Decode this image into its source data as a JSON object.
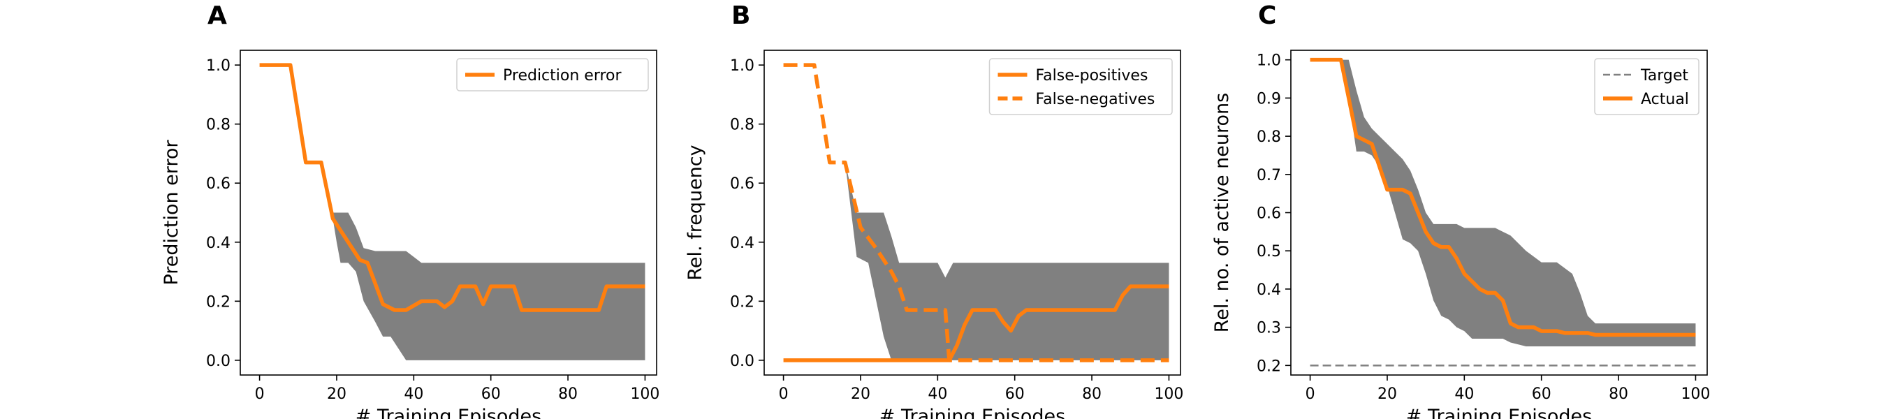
{
  "colors": {
    "orange": "#ff7f0e",
    "band": "#808080",
    "target": "#808080"
  },
  "chart_data": [
    {
      "panel": "A",
      "type": "line",
      "xlabel": "# Training Episodes",
      "ylabel": "Prediction error",
      "xlim": [
        -5,
        103
      ],
      "ylim": [
        -0.05,
        1.05
      ],
      "xticks": [
        0,
        20,
        40,
        60,
        80,
        100
      ],
      "yticks": [
        0.0,
        0.2,
        0.4,
        0.6,
        0.8,
        1.0
      ],
      "ytick_labels": [
        "0.0",
        "0.2",
        "0.4",
        "0.6",
        "0.8",
        "1.0"
      ],
      "legend_position": "upper right",
      "band": {
        "x": [
          16,
          19,
          20,
          21,
          23,
          25,
          27,
          30,
          32,
          34,
          38,
          40,
          42,
          100
        ],
        "upper": [
          0.67,
          0.5,
          0.5,
          0.5,
          0.5,
          0.45,
          0.38,
          0.37,
          0.37,
          0.37,
          0.37,
          0.35,
          0.33,
          0.33
        ],
        "lower": [
          0.67,
          0.48,
          0.4,
          0.33,
          0.33,
          0.3,
          0.2,
          0.13,
          0.08,
          0.08,
          0.0,
          0.0,
          0.0,
          0.0
        ]
      },
      "series": [
        {
          "name": "Prediction error",
          "style": "solid",
          "x": [
            0,
            8,
            12,
            16,
            19,
            22,
            26,
            28,
            32,
            35,
            38,
            42,
            44,
            46,
            48,
            50,
            52,
            54,
            56,
            58,
            60,
            62,
            64,
            66,
            68,
            70,
            72,
            80,
            86,
            88,
            90,
            100
          ],
          "y": [
            1.0,
            1.0,
            0.67,
            0.67,
            0.48,
            0.42,
            0.34,
            0.33,
            0.19,
            0.17,
            0.17,
            0.2,
            0.2,
            0.2,
            0.18,
            0.2,
            0.25,
            0.25,
            0.25,
            0.19,
            0.25,
            0.25,
            0.25,
            0.25,
            0.17,
            0.17,
            0.17,
            0.17,
            0.17,
            0.17,
            0.25,
            0.25
          ]
        }
      ]
    },
    {
      "panel": "B",
      "type": "line",
      "xlabel": "# Training Episodes",
      "ylabel": "Rel. frequency",
      "xlim": [
        -5,
        103
      ],
      "ylim": [
        -0.05,
        1.05
      ],
      "xticks": [
        0,
        20,
        40,
        60,
        80,
        100
      ],
      "yticks": [
        0.0,
        0.2,
        0.4,
        0.6,
        0.8,
        1.0
      ],
      "ytick_labels": [
        "0.0",
        "0.2",
        "0.4",
        "0.6",
        "0.8",
        "1.0"
      ],
      "legend_position": "upper right",
      "band": {
        "x": [
          16,
          19,
          22,
          26,
          28,
          30,
          32,
          36,
          40,
          42,
          44,
          100
        ],
        "upper": [
          0.67,
          0.5,
          0.5,
          0.5,
          0.42,
          0.33,
          0.33,
          0.33,
          0.33,
          0.28,
          0.33,
          0.33
        ],
        "lower": [
          0.67,
          0.35,
          0.33,
          0.08,
          0.0,
          0.0,
          0.0,
          0.0,
          0.0,
          0.0,
          0.0,
          0.0
        ]
      },
      "series": [
        {
          "name": "False-positives",
          "style": "solid",
          "x": [
            0,
            20,
            40,
            43,
            45,
            47,
            49,
            51,
            53,
            55,
            57,
            59,
            61,
            63,
            70,
            80,
            86,
            88,
            90,
            100
          ],
          "y": [
            0.0,
            0.0,
            0.0,
            0.0,
            0.05,
            0.12,
            0.17,
            0.17,
            0.17,
            0.17,
            0.13,
            0.1,
            0.15,
            0.17,
            0.17,
            0.17,
            0.17,
            0.22,
            0.25,
            0.25
          ]
        },
        {
          "name": "False-negatives",
          "style": "dashed",
          "x": [
            0,
            8,
            12,
            16,
            20,
            24,
            28,
            30,
            32,
            34,
            38,
            40,
            42,
            43,
            100
          ],
          "y": [
            1.0,
            1.0,
            0.67,
            0.67,
            0.45,
            0.38,
            0.3,
            0.25,
            0.17,
            0.17,
            0.17,
            0.17,
            0.17,
            0.0,
            0.0
          ]
        }
      ]
    },
    {
      "panel": "C",
      "type": "line",
      "xlabel": "# Training Episodes",
      "ylabel": "Rel. no. of active neurons",
      "xlim": [
        -5,
        103
      ],
      "ylim": [
        0.175,
        1.025
      ],
      "xticks": [
        0,
        20,
        40,
        60,
        80,
        100
      ],
      "yticks": [
        0.2,
        0.3,
        0.4,
        0.5,
        0.6,
        0.7,
        0.8,
        0.9,
        1.0
      ],
      "ytick_labels": [
        "0.2",
        "0.3",
        "0.4",
        "0.5",
        "0.6",
        "0.7",
        "0.8",
        "0.9",
        "1.0"
      ],
      "legend_position": "upper right",
      "band": {
        "x": [
          8,
          10,
          12,
          14,
          16,
          18,
          20,
          22,
          24,
          26,
          28,
          30,
          32,
          34,
          36,
          38,
          40,
          42,
          44,
          46,
          48,
          50,
          52,
          56,
          60,
          64,
          68,
          70,
          72,
          74,
          76,
          80,
          90,
          100
        ],
        "upper": [
          1.0,
          1.0,
          0.92,
          0.85,
          0.82,
          0.8,
          0.78,
          0.76,
          0.74,
          0.71,
          0.66,
          0.6,
          0.57,
          0.57,
          0.57,
          0.57,
          0.56,
          0.56,
          0.56,
          0.56,
          0.56,
          0.55,
          0.54,
          0.5,
          0.47,
          0.47,
          0.44,
          0.39,
          0.33,
          0.31,
          0.31,
          0.31,
          0.31,
          0.31
        ],
        "lower": [
          1.0,
          0.9,
          0.76,
          0.76,
          0.75,
          0.72,
          0.67,
          0.6,
          0.53,
          0.52,
          0.5,
          0.44,
          0.37,
          0.33,
          0.32,
          0.3,
          0.29,
          0.27,
          0.27,
          0.27,
          0.27,
          0.27,
          0.26,
          0.25,
          0.25,
          0.25,
          0.25,
          0.25,
          0.25,
          0.25,
          0.25,
          0.25,
          0.25,
          0.25
        ]
      },
      "series": [
        {
          "name": "Target",
          "style": "dashed-thin",
          "x": [
            0,
            100
          ],
          "y": [
            0.2,
            0.2
          ]
        },
        {
          "name": "Actual",
          "style": "solid",
          "x": [
            0,
            8,
            10,
            12,
            14,
            16,
            18,
            20,
            22,
            24,
            26,
            28,
            30,
            32,
            34,
            36,
            38,
            40,
            42,
            44,
            46,
            48,
            50,
            52,
            54,
            56,
            58,
            60,
            64,
            66,
            68,
            70,
            72,
            74,
            76,
            80,
            90,
            100
          ],
          "y": [
            1.0,
            1.0,
            0.9,
            0.8,
            0.79,
            0.78,
            0.72,
            0.66,
            0.66,
            0.66,
            0.65,
            0.6,
            0.55,
            0.52,
            0.51,
            0.51,
            0.48,
            0.44,
            0.42,
            0.4,
            0.39,
            0.39,
            0.37,
            0.31,
            0.3,
            0.3,
            0.3,
            0.29,
            0.29,
            0.285,
            0.285,
            0.285,
            0.285,
            0.28,
            0.28,
            0.28,
            0.28,
            0.28
          ]
        }
      ]
    }
  ]
}
